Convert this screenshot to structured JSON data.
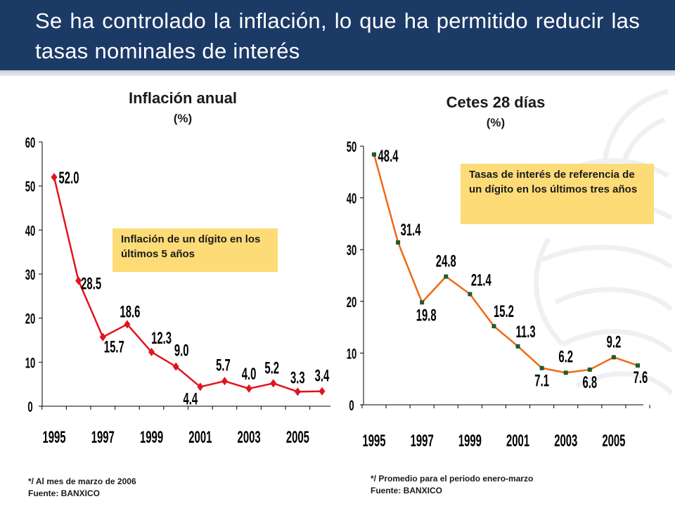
{
  "slide": {
    "title": "Se ha controlado la inflación, lo que ha permitido reducir las tasas nominales de interés",
    "colors": {
      "header": "#1c3a66",
      "inflation_line": "#e0141e",
      "cetes_line": "#ef6a13",
      "callout": "#fddc77"
    }
  },
  "left": {
    "title": "Inflación anual",
    "unit": "(%)",
    "callout": "Inflación de un dígito en los últimos 5 años",
    "note_line1": "*/ Al mes de marzo de 2006",
    "note_line2": "Fuente: BANXICO"
  },
  "right": {
    "title": "Cetes 28 días",
    "unit": "(%)",
    "callout": "Tasas de interés de referencia de un dígito en los últimos tres años",
    "note_line1": "*/ Promedio para el periodo enero-marzo",
    "note_line2": "Fuente: BANXICO"
  },
  "chart_data": [
    {
      "type": "line",
      "title": "Inflación anual",
      "ylabel": "(%)",
      "ylim": [
        0,
        60
      ],
      "yticks": [
        0,
        10,
        20,
        30,
        40,
        50,
        60
      ],
      "xticks": [
        "1995",
        "1997",
        "1999",
        "2001",
        "2003",
        "2005"
      ],
      "x": [
        1995,
        1996,
        1997,
        1998,
        1999,
        2000,
        2001,
        2002,
        2003,
        2004,
        2005,
        2006
      ],
      "series": [
        {
          "values": [
            52.0,
            28.5,
            15.7,
            18.6,
            12.3,
            9.0,
            4.4,
            5.7,
            4.0,
            5.2,
            3.3,
            3.4
          ],
          "labels": [
            "52.0",
            "28.5",
            "15.7",
            "18.6",
            "12.3",
            "9.0",
            "4.4",
            "5.7",
            "4.0",
            "5.2",
            "3.3",
            "3.4"
          ]
        }
      ],
      "grid": false
    },
    {
      "type": "line",
      "title": "Cetes 28 días",
      "ylabel": "(%)",
      "ylim": [
        0,
        50
      ],
      "yticks": [
        0,
        10,
        20,
        30,
        40,
        50
      ],
      "xticks": [
        "1995",
        "1997",
        "1999",
        "2001",
        "2003",
        "2005"
      ],
      "x": [
        1995,
        1996,
        1997,
        1998,
        1999,
        2000,
        2001,
        2002,
        2003,
        2004,
        2005,
        2006
      ],
      "series": [
        {
          "values": [
            48.4,
            31.4,
            19.8,
            24.8,
            21.4,
            15.2,
            11.3,
            7.1,
            6.2,
            6.8,
            9.2,
            7.6
          ],
          "labels": [
            "48.4",
            "31.4",
            "19.8",
            "24.8",
            "21.4",
            "15.2",
            "11.3",
            "7.1",
            "6.2",
            "6.8",
            "9.2",
            "7.6"
          ]
        }
      ],
      "grid": false
    }
  ]
}
